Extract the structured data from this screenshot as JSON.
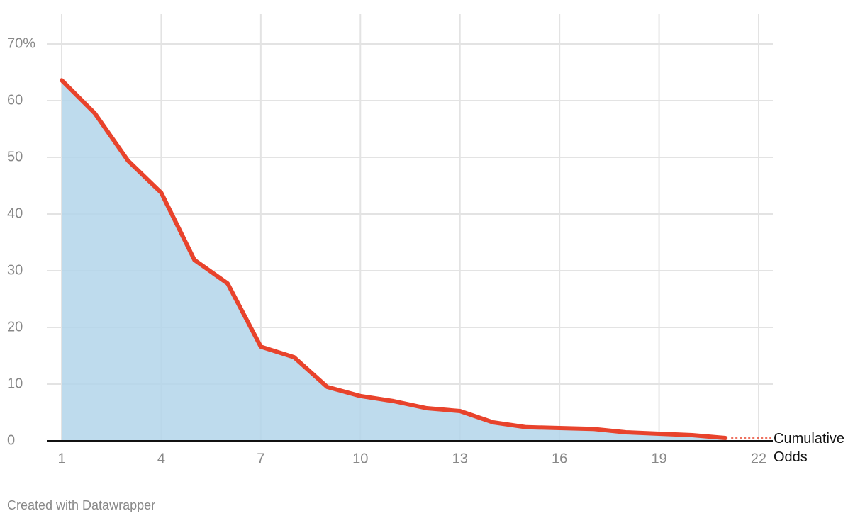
{
  "chart_data": {
    "type": "area",
    "x": [
      1,
      2,
      3,
      4,
      5,
      6,
      7,
      8,
      9,
      10,
      11,
      12,
      13,
      14,
      15,
      16,
      17,
      18,
      19,
      20,
      21
    ],
    "series": [
      {
        "name": "Cumulative Odds",
        "color": "#e8432c",
        "fill": "#b3d5ea",
        "values": [
          63.6,
          57.75,
          49.4,
          43.75,
          31.9,
          27.75,
          16.6,
          14.75,
          9.5,
          7.9,
          7.0,
          5.75,
          5.25,
          3.25,
          2.4,
          2.25,
          2.1,
          1.5,
          1.25,
          1.0,
          0.5
        ]
      }
    ],
    "xlim": [
      1,
      22
    ],
    "xticks": [
      1,
      4,
      7,
      10,
      13,
      16,
      19,
      22
    ],
    "ylim": [
      0,
      70
    ],
    "yticks": [
      0,
      10,
      20,
      30,
      40,
      50,
      60,
      {
        "value": 70,
        "label": "70%"
      }
    ],
    "grid": true,
    "footer": "Created with Datawrapper"
  }
}
